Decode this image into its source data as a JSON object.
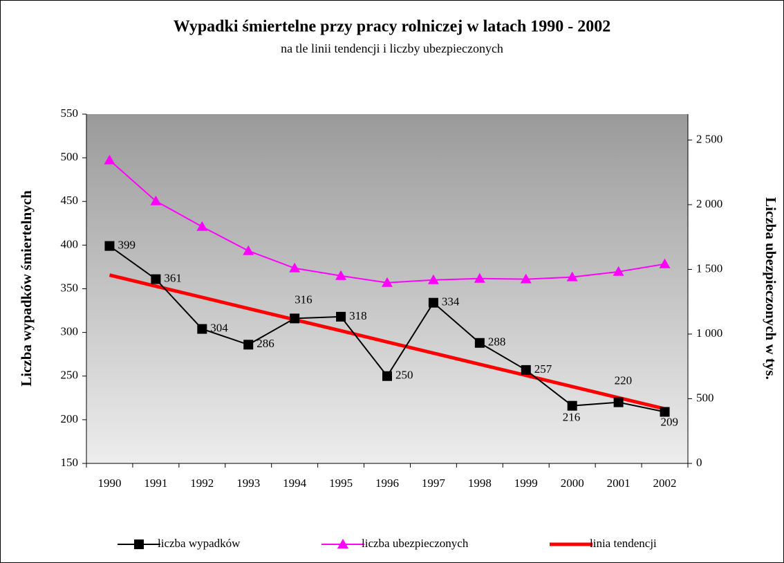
{
  "chart_data": {
    "type": "line",
    "title": "Wypadki śmiertelne przy pracy rolniczej w latach 1990 - 2002",
    "subtitle": "na tle linii tendencji i liczby ubezpieczonych",
    "y_label": "Liczba wypadków śmiertelnych",
    "y2_label": "Liczba ubezpieczonych w tys.",
    "categories": [
      "1990",
      "1991",
      "1992",
      "1993",
      "1994",
      "1995",
      "1996",
      "1997",
      "1998",
      "1999",
      "2000",
      "2001",
      "2002"
    ],
    "series": [
      {
        "name": "liczba wypadków",
        "color": "#000000",
        "marker": "square",
        "width": 2,
        "data_labels": true,
        "values": [
          399,
          361,
          304,
          286,
          316,
          318,
          250,
          334,
          288,
          257,
          216,
          220,
          209
        ]
      },
      {
        "name": "liczba ubezpieczonych",
        "color": "#ff00ff",
        "marker": "triangle",
        "width": 2,
        "axis": "y2",
        "values": [
          2344,
          2028,
          1830,
          1643,
          1509,
          1450,
          1397,
          1418,
          1429,
          1424,
          1440,
          1482,
          1541
        ]
      },
      {
        "name": "linia tendencji",
        "color": "#ff0000",
        "marker": null,
        "width": 5,
        "values": [
          365.7,
          352.9,
          340.2,
          327.4,
          314.6,
          301.9,
          289.1,
          276.3,
          263.5,
          250.8,
          238.0,
          225.2,
          212.5
        ]
      }
    ],
    "ylim": [
      150,
      550
    ],
    "yticks": [
      150,
      200,
      250,
      300,
      350,
      400,
      450,
      500,
      550
    ],
    "y2lim": [
      0,
      2700
    ],
    "y2ticks": [
      0,
      500,
      {
        "value": 1000,
        "label": "1 000"
      },
      {
        "value": 1500,
        "label": "1 500"
      },
      {
        "value": 2000,
        "label": "2 000"
      },
      {
        "value": 2500,
        "label": "2 500"
      }
    ],
    "legend": "bottom",
    "grid": false
  }
}
